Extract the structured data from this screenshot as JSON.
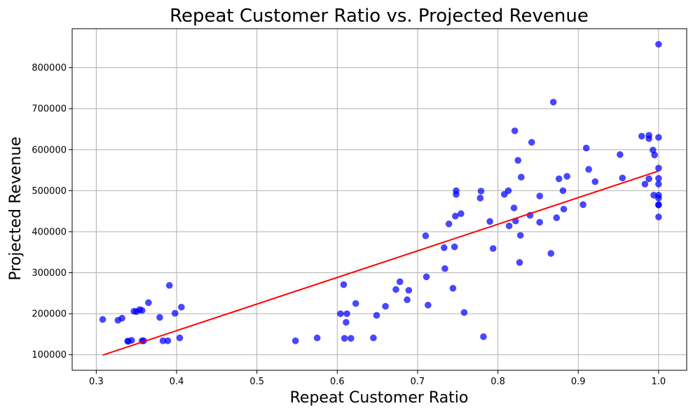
{
  "chart_data": {
    "type": "scatter",
    "title": "Repeat Customer Ratio vs. Projected Revenue",
    "xlabel": "Repeat Customer Ratio",
    "ylabel": "Projected Revenue",
    "xlim": [
      0.27,
      1.035
    ],
    "ylim": [
      62000,
      895000
    ],
    "xticks": [
      0.3,
      0.4,
      0.5,
      0.6,
      0.7,
      0.8,
      0.9,
      1.0
    ],
    "xtick_labels": [
      "0.3",
      "0.4",
      "0.5",
      "0.6",
      "0.7",
      "0.8",
      "0.9",
      "1.0"
    ],
    "yticks": [
      100000,
      200000,
      300000,
      400000,
      500000,
      600000,
      700000,
      800000
    ],
    "ytick_labels": [
      "100000",
      "200000",
      "300000",
      "400000",
      "500000",
      "600000",
      "700000",
      "800000"
    ],
    "grid": true,
    "colors": {
      "points": "#0000ff",
      "trend": "#ff0000"
    },
    "trendline": {
      "x": [
        0.308,
        1.0
      ],
      "y": [
        99000,
        548000
      ]
    },
    "points": [
      [
        0.308,
        186000
      ],
      [
        0.327,
        184000
      ],
      [
        0.332,
        189000
      ],
      [
        0.339,
        133000
      ],
      [
        0.34,
        133000
      ],
      [
        0.344,
        135000
      ],
      [
        0.347,
        206000
      ],
      [
        0.35,
        205000
      ],
      [
        0.354,
        210000
      ],
      [
        0.357,
        208000
      ],
      [
        0.357,
        134000
      ],
      [
        0.359,
        134000
      ],
      [
        0.365,
        227000
      ],
      [
        0.379,
        191000
      ],
      [
        0.383,
        134000
      ],
      [
        0.389,
        134000
      ],
      [
        0.391,
        269000
      ],
      [
        0.398,
        201000
      ],
      [
        0.404,
        141000
      ],
      [
        0.406,
        216000
      ],
      [
        0.548,
        134000
      ],
      [
        0.575,
        141000
      ],
      [
        0.604,
        200000
      ],
      [
        0.608,
        271000
      ],
      [
        0.609,
        140000
      ],
      [
        0.611,
        179000
      ],
      [
        0.612,
        200000
      ],
      [
        0.617,
        140000
      ],
      [
        0.623,
        225000
      ],
      [
        0.645,
        141000
      ],
      [
        0.649,
        196000
      ],
      [
        0.66,
        218000
      ],
      [
        0.673,
        259000
      ],
      [
        0.678,
        278000
      ],
      [
        0.687,
        234000
      ],
      [
        0.689,
        257000
      ],
      [
        0.71,
        390000
      ],
      [
        0.711,
        290000
      ],
      [
        0.713,
        221000
      ],
      [
        0.733,
        361000
      ],
      [
        0.734,
        310000
      ],
      [
        0.739,
        419000
      ],
      [
        0.744,
        262000
      ],
      [
        0.746,
        363000
      ],
      [
        0.747,
        438000
      ],
      [
        0.748,
        500000
      ],
      [
        0.748,
        491000
      ],
      [
        0.754,
        444000
      ],
      [
        0.758,
        203000
      ],
      [
        0.778,
        482000
      ],
      [
        0.779,
        499000
      ],
      [
        0.782,
        144000
      ],
      [
        0.79,
        425000
      ],
      [
        0.794,
        359000
      ],
      [
        0.808,
        491000
      ],
      [
        0.813,
        500000
      ],
      [
        0.814,
        414000
      ],
      [
        0.82,
        458000
      ],
      [
        0.821,
        646000
      ],
      [
        0.822,
        426000
      ],
      [
        0.825,
        574000
      ],
      [
        0.827,
        325000
      ],
      [
        0.828,
        391000
      ],
      [
        0.829,
        533000
      ],
      [
        0.84,
        440000
      ],
      [
        0.842,
        618000
      ],
      [
        0.852,
        423000
      ],
      [
        0.852,
        487000
      ],
      [
        0.866,
        347000
      ],
      [
        0.869,
        716000
      ],
      [
        0.873,
        434000
      ],
      [
        0.876,
        529000
      ],
      [
        0.881,
        500000
      ],
      [
        0.882,
        455000
      ],
      [
        0.886,
        535000
      ],
      [
        0.906,
        466000
      ],
      [
        0.91,
        604000
      ],
      [
        0.913,
        552000
      ],
      [
        0.921,
        522000
      ],
      [
        0.952,
        588000
      ],
      [
        0.955,
        531000
      ],
      [
        0.979,
        633000
      ],
      [
        0.983,
        516000
      ],
      [
        0.988,
        635000
      ],
      [
        0.988,
        627000
      ],
      [
        0.988,
        529000
      ],
      [
        0.993,
        599000
      ],
      [
        0.994,
        489000
      ],
      [
        0.995,
        587000
      ],
      [
        1.0,
        857000
      ],
      [
        1.0,
        630000
      ],
      [
        1.0,
        555000
      ],
      [
        1.0,
        530000
      ],
      [
        1.0,
        516000
      ],
      [
        1.0,
        489000
      ],
      [
        1.0,
        482000
      ],
      [
        1.0,
        466000
      ],
      [
        1.0,
        465000
      ],
      [
        1.0,
        436000
      ]
    ]
  }
}
